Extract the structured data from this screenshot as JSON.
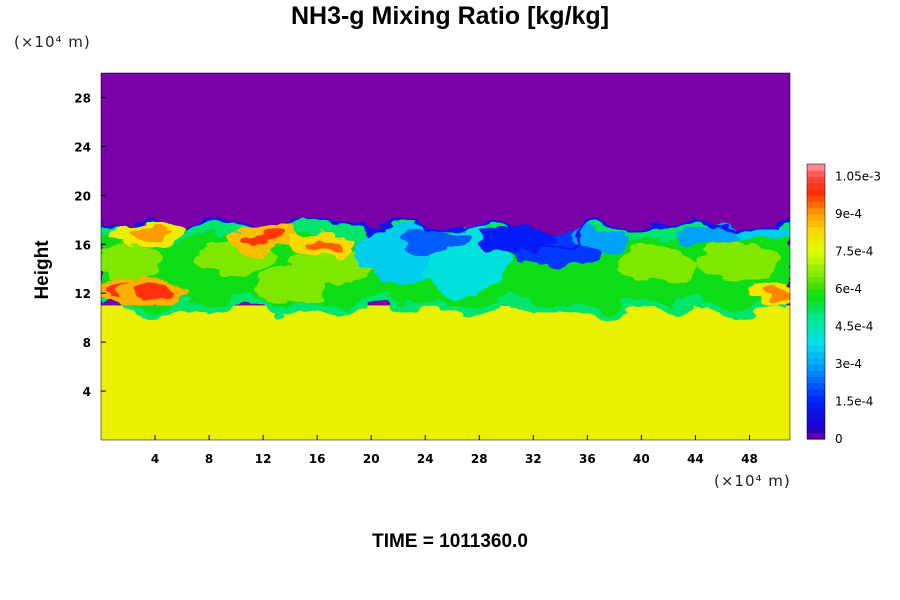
{
  "chart_data": {
    "type": "heatmap",
    "title": "NH3-g Mixing Ratio [kg/kg]",
    "ylabel": "Height",
    "y_unit": "(×10⁴ m)",
    "x_unit": "(×10⁴ m)",
    "xlim": [
      0,
      51
    ],
    "ylim": [
      0,
      30
    ],
    "x_ticks": [
      "4",
      "8",
      "12",
      "16",
      "20",
      "24",
      "28",
      "32",
      "36",
      "40",
      "44",
      "48"
    ],
    "y_ticks": [
      "4",
      "8",
      "12",
      "16",
      "20",
      "24",
      "28"
    ],
    "colorbar": {
      "min": 0,
      "max": 0.0011,
      "tick_labels": [
        "0",
        "1.5e-4",
        "3e-4",
        "4.5e-4",
        "6e-4",
        "7.5e-4",
        "9e-4",
        "1.05e-3"
      ],
      "tick_values": [
        0,
        0.00015,
        0.0003,
        0.00045,
        0.0006,
        0.00075,
        0.0009,
        0.00105
      ]
    },
    "field": {
      "lower_layer_value": 0.00078,
      "upper_layer_value": 0,
      "interface_height": 17.5,
      "blue_region_x": [
        20,
        37
      ],
      "hot_spots": [
        {
          "x": 2,
          "y": 12.2,
          "value": 0.001
        },
        {
          "x": 4,
          "y": 12.0,
          "value": 0.001
        },
        {
          "x": 12,
          "y": 16.5,
          "value": 0.00098
        },
        {
          "x": 16.5,
          "y": 16.0,
          "value": 0.00095
        },
        {
          "x": 3.5,
          "y": 16.8,
          "value": 0.0009
        },
        {
          "x": 50.5,
          "y": 12.0,
          "value": 0.00092
        }
      ]
    }
  },
  "footer": {
    "time_label": "TIME = 1011360.0"
  }
}
